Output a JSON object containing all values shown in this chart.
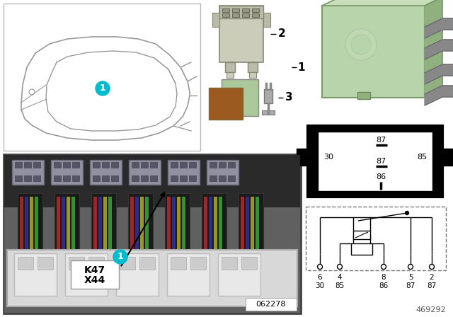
{
  "bg_color": "#ffffff",
  "car_outline_color": "#999999",
  "cyan_circle_color": "#00bbcc",
  "relay_green": "#b8d4aa",
  "relay_green_dark": "#8aaa7a",
  "relay_gray_pins": "#888888",
  "brown_color": "#9a5a20",
  "green_swatch": "#aac89a",
  "doc_number": "469292",
  "photo_label": "062278",
  "k47_label": "K47",
  "x44_label": "X44"
}
